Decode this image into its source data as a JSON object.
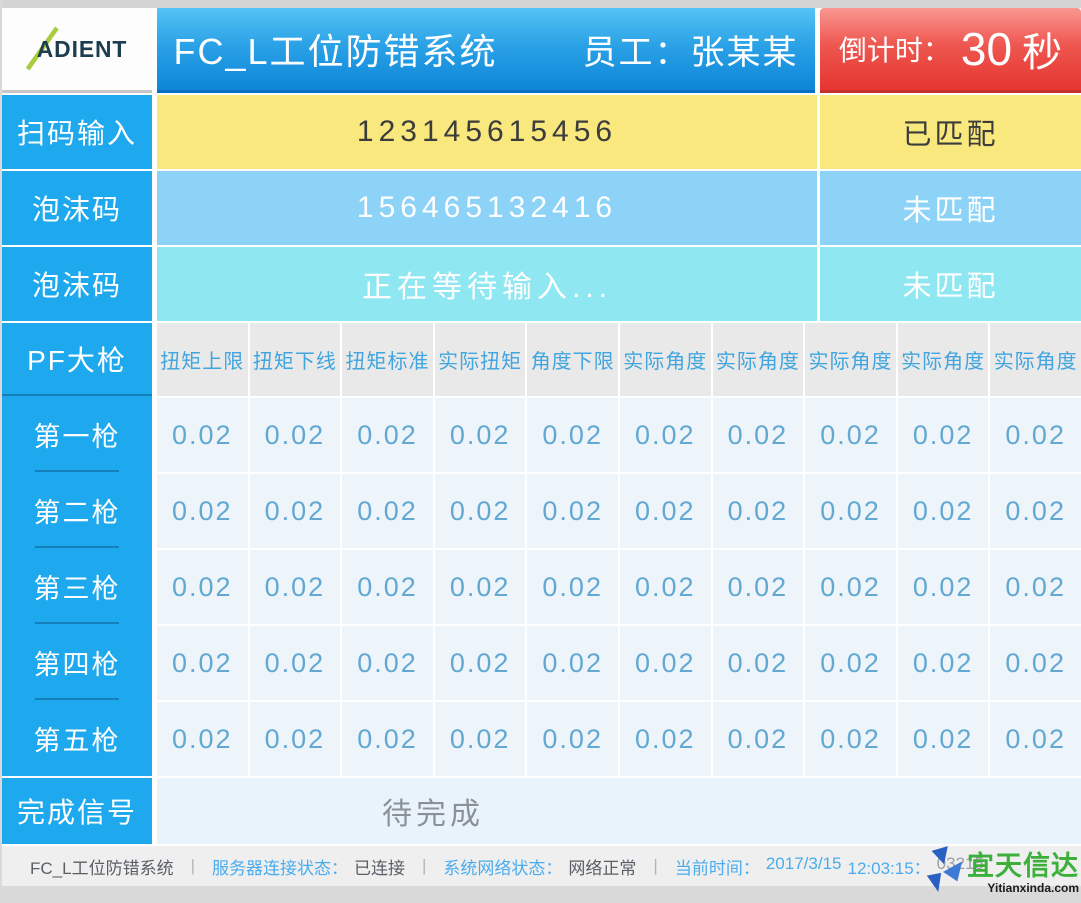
{
  "header": {
    "logo_text": "ADIENT",
    "title": "FC_L工位防错系统",
    "employee": "员工：张某某",
    "countdown_label": "倒计时：",
    "countdown_value": "30",
    "countdown_unit": "秒"
  },
  "scan_rows": [
    {
      "label": "扫码输入",
      "value": "123145615456",
      "status": "已匹配"
    },
    {
      "label": "泡沫码",
      "value": "156465132416",
      "status": "未匹配"
    },
    {
      "label": "泡沫码",
      "value": "正在等待输入...",
      "status": "未匹配"
    }
  ],
  "gun_table": {
    "section_label": "PF大枪",
    "columns": [
      "扭矩上限",
      "扭矩下线",
      "扭矩标准",
      "实际扭矩",
      "角度下限",
      "实际角度",
      "实际角度",
      "实际角度",
      "实际角度",
      "实际角度"
    ],
    "rows": [
      {
        "label": "第一枪",
        "values": [
          "0.02",
          "0.02",
          "0.02",
          "0.02",
          "0.02",
          "0.02",
          "0.02",
          "0.02",
          "0.02",
          "0.02"
        ]
      },
      {
        "label": "第二枪",
        "values": [
          "0.02",
          "0.02",
          "0.02",
          "0.02",
          "0.02",
          "0.02",
          "0.02",
          "0.02",
          "0.02",
          "0.02"
        ]
      },
      {
        "label": "第三枪",
        "values": [
          "0.02",
          "0.02",
          "0.02",
          "0.02",
          "0.02",
          "0.02",
          "0.02",
          "0.02",
          "0.02",
          "0.02"
        ]
      },
      {
        "label": "第四枪",
        "values": [
          "0.02",
          "0.02",
          "0.02",
          "0.02",
          "0.02",
          "0.02",
          "0.02",
          "0.02",
          "0.02",
          "0.02"
        ]
      },
      {
        "label": "第五枪",
        "values": [
          "0.02",
          "0.02",
          "0.02",
          "0.02",
          "0.02",
          "0.02",
          "0.02",
          "0.02",
          "0.02",
          "0.02"
        ]
      }
    ]
  },
  "completion": {
    "label": "完成信号",
    "value": "待完成"
  },
  "footer": {
    "app_name": "FC_L工位防错系统",
    "separator": "|",
    "server_label": "服务器连接状态：",
    "server_value": "已连接",
    "network_label": "系统网络状态：",
    "network_value": "网络正常",
    "time_label": "当前时间：",
    "date": "2017/3/15",
    "time": "12:03:15：",
    "milliseconds": "03215"
  },
  "watermark": {
    "brand": "宜天信达",
    "domain": "Yitianxinda.com",
    "icon": "pinwheel-logo-icon"
  },
  "colors": {
    "sidebar_blue": "#1ea9ee",
    "header_blue": "#0d86d8",
    "alert_red": "#e63530",
    "match_yellow": "#f9e87d",
    "foam_blue": "#8dd3f8",
    "waiting_cyan": "#8fe7f1",
    "table_value_blue": "#63a8d3",
    "brand_green": "#3db03c"
  }
}
